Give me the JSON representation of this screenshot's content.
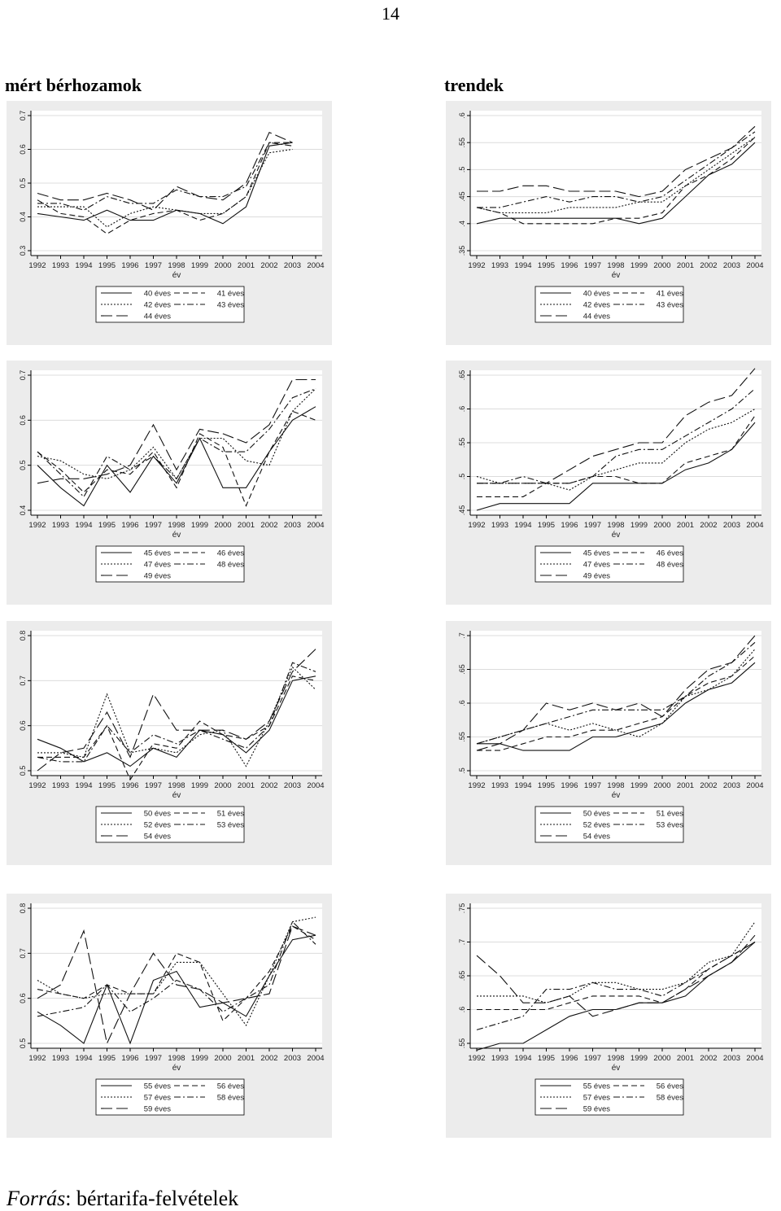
{
  "page_number": "14",
  "titles": {
    "left": "mért bérhozamok",
    "right": "trendek"
  },
  "footer": {
    "label": "Forrás",
    "text": ": bértarifa-felvételek"
  },
  "chart_data": [
    {
      "type": "line",
      "x_label": "év",
      "x": [
        1992,
        1993,
        1994,
        1995,
        1996,
        1997,
        1998,
        1999,
        2000,
        2001,
        2002,
        2003,
        2004
      ],
      "xticks": [
        "1992",
        "1993",
        "1994",
        "1995",
        "1996",
        "1997",
        "1998",
        "1999",
        "2000",
        "2001",
        "2002",
        "2003",
        "2004"
      ],
      "ylim": [
        0.3,
        0.7
      ],
      "yticks": [
        "0.3",
        "0.4",
        "0.5",
        "0.6",
        "0.7"
      ],
      "ytick_values": [
        0.3,
        0.4,
        0.5,
        0.6,
        0.7
      ],
      "series": [
        {
          "name": "40 éves",
          "values": [
            0.41,
            0.4,
            0.39,
            0.42,
            0.39,
            0.39,
            0.42,
            0.41,
            0.38,
            0.43,
            0.61,
            0.62,
            null
          ]
        },
        {
          "name": "41 éves",
          "values": [
            0.45,
            0.41,
            0.4,
            0.35,
            0.39,
            0.41,
            0.42,
            0.39,
            0.41,
            0.46,
            0.62,
            0.62,
            null
          ]
        },
        {
          "name": "42 éves",
          "values": [
            0.43,
            0.43,
            0.43,
            0.37,
            0.41,
            0.43,
            0.42,
            0.41,
            0.41,
            0.46,
            0.59,
            0.6,
            null
          ]
        },
        {
          "name": "43 éves",
          "values": [
            0.44,
            0.44,
            0.42,
            0.46,
            0.44,
            0.44,
            0.48,
            0.46,
            0.46,
            0.49,
            0.62,
            0.61,
            null
          ]
        },
        {
          "name": "44 éves",
          "values": [
            0.47,
            0.45,
            0.45,
            0.47,
            0.45,
            0.42,
            0.49,
            0.46,
            0.45,
            0.5,
            0.65,
            0.62,
            null
          ]
        }
      ]
    },
    {
      "type": "line",
      "x_label": "év",
      "x": [
        1992,
        1993,
        1994,
        1995,
        1996,
        1997,
        1998,
        1999,
        2000,
        2001,
        2002,
        2003,
        2004
      ],
      "xticks": [
        "1992",
        "1993",
        "1994",
        "1995",
        "1996",
        "1997",
        "1998",
        "1999",
        "2000",
        "2001",
        "2002",
        "2003",
        "2004"
      ],
      "ylim": [
        0.35,
        0.6
      ],
      "yticks": [
        ".35",
        ".4",
        ".45",
        ".5",
        ".55",
        ".6"
      ],
      "ytick_values": [
        0.35,
        0.4,
        0.45,
        0.5,
        0.55,
        0.6
      ],
      "series": [
        {
          "name": "40 éves",
          "values": [
            0.4,
            0.41,
            0.41,
            0.41,
            0.41,
            0.41,
            0.41,
            0.4,
            0.41,
            0.45,
            0.49,
            0.51,
            0.55
          ]
        },
        {
          "name": "41 éves",
          "values": [
            0.43,
            0.42,
            0.4,
            0.4,
            0.4,
            0.4,
            0.41,
            0.41,
            0.42,
            0.47,
            0.49,
            0.52,
            0.56
          ]
        },
        {
          "name": "42 éves",
          "values": [
            0.43,
            0.42,
            0.42,
            0.42,
            0.43,
            0.43,
            0.43,
            0.44,
            0.44,
            0.47,
            0.5,
            0.53,
            0.56
          ]
        },
        {
          "name": "43 éves",
          "values": [
            0.43,
            0.43,
            0.44,
            0.45,
            0.44,
            0.45,
            0.45,
            0.44,
            0.45,
            0.48,
            0.51,
            0.54,
            0.57
          ]
        },
        {
          "name": "44 éves",
          "values": [
            0.46,
            0.46,
            0.47,
            0.47,
            0.46,
            0.46,
            0.46,
            0.45,
            0.46,
            0.5,
            0.52,
            0.54,
            0.58
          ]
        }
      ]
    },
    {
      "type": "line",
      "x_label": "év",
      "x": [
        1992,
        1993,
        1994,
        1995,
        1996,
        1997,
        1998,
        1999,
        2000,
        2001,
        2002,
        2003,
        2004
      ],
      "xticks": [
        "1992",
        "1993",
        "1994",
        "1995",
        "1996",
        "1997",
        "1998",
        "1999",
        "2000",
        "2001",
        "2002",
        "2003",
        "2004"
      ],
      "ylim": [
        0.4,
        0.7
      ],
      "yticks": [
        "0.4",
        "0.5",
        "0.6",
        "0.7"
      ],
      "ytick_values": [
        0.4,
        0.5,
        0.6,
        0.7
      ],
      "series": [
        {
          "name": "45 éves",
          "values": [
            0.5,
            0.45,
            0.41,
            0.5,
            0.44,
            0.52,
            0.46,
            0.56,
            0.45,
            0.45,
            0.53,
            0.6,
            0.63
          ]
        },
        {
          "name": "46 éves",
          "values": [
            0.53,
            0.49,
            0.44,
            0.49,
            0.48,
            0.53,
            0.45,
            0.57,
            0.54,
            0.41,
            0.53,
            0.62,
            0.6
          ]
        },
        {
          "name": "47 éves",
          "values": [
            0.52,
            0.51,
            0.48,
            0.47,
            0.49,
            0.54,
            0.47,
            0.56,
            0.56,
            0.51,
            0.5,
            0.62,
            0.67
          ]
        },
        {
          "name": "48 éves",
          "values": [
            0.53,
            0.48,
            0.43,
            0.52,
            0.49,
            0.52,
            0.47,
            0.56,
            0.53,
            0.53,
            0.58,
            0.65,
            0.67
          ]
        },
        {
          "name": "49 éves",
          "values": [
            0.46,
            0.47,
            0.47,
            0.48,
            0.5,
            0.59,
            0.49,
            0.58,
            0.57,
            0.55,
            0.59,
            0.69,
            0.69
          ]
        }
      ]
    },
    {
      "type": "line",
      "x_label": "év",
      "x": [
        1992,
        1993,
        1994,
        1995,
        1996,
        1997,
        1998,
        1999,
        2000,
        2001,
        2002,
        2003,
        2004
      ],
      "xticks": [
        "1992",
        "1993",
        "1994",
        "1995",
        "1996",
        "1997",
        "1998",
        "1999",
        "2000",
        "2001",
        "2002",
        "2003",
        "2004"
      ],
      "ylim": [
        0.45,
        0.65
      ],
      "yticks": [
        ".45",
        ".5",
        ".55",
        ".6",
        ".65"
      ],
      "ytick_values": [
        0.45,
        0.5,
        0.55,
        0.6,
        0.65
      ],
      "series": [
        {
          "name": "45 éves",
          "values": [
            0.45,
            0.46,
            0.46,
            0.46,
            0.46,
            0.49,
            0.49,
            0.49,
            0.49,
            0.51,
            0.52,
            0.54,
            0.58
          ]
        },
        {
          "name": "46 éves",
          "values": [
            0.47,
            0.47,
            0.47,
            0.49,
            0.49,
            0.5,
            0.5,
            0.49,
            0.49,
            0.52,
            0.53,
            0.54,
            0.59
          ]
        },
        {
          "name": "47 éves",
          "values": [
            0.5,
            0.49,
            0.49,
            0.49,
            0.48,
            0.5,
            0.51,
            0.52,
            0.52,
            0.55,
            0.57,
            0.58,
            0.6
          ]
        },
        {
          "name": "48 éves",
          "values": [
            0.49,
            0.49,
            0.5,
            0.49,
            0.49,
            0.5,
            0.53,
            0.54,
            0.54,
            0.56,
            0.58,
            0.6,
            0.63
          ]
        },
        {
          "name": "49 éves",
          "values": [
            0.49,
            0.49,
            0.49,
            0.49,
            0.51,
            0.53,
            0.54,
            0.55,
            0.55,
            0.59,
            0.61,
            0.62,
            0.66
          ]
        }
      ]
    },
    {
      "type": "line",
      "x_label": "év",
      "x": [
        1992,
        1993,
        1994,
        1995,
        1996,
        1997,
        1998,
        1999,
        2000,
        2001,
        2002,
        2003,
        2004
      ],
      "xticks": [
        "1992",
        "1993",
        "1994",
        "1995",
        "1996",
        "1997",
        "1998",
        "1999",
        "2000",
        "2001",
        "2002",
        "2003",
        "2004"
      ],
      "ylim": [
        0.5,
        0.8
      ],
      "yticks": [
        "0.5",
        "0.6",
        "0.7",
        "0.8"
      ],
      "ytick_values": [
        0.5,
        0.6,
        0.7,
        0.8
      ],
      "series": [
        {
          "name": "50 éves",
          "values": [
            0.57,
            0.55,
            0.52,
            0.54,
            0.51,
            0.55,
            0.53,
            0.59,
            0.58,
            0.54,
            0.59,
            0.7,
            0.71
          ]
        },
        {
          "name": "51 éves",
          "values": [
            0.53,
            0.53,
            0.53,
            0.6,
            0.48,
            0.56,
            0.55,
            0.61,
            0.58,
            0.57,
            0.6,
            0.71,
            0.7
          ]
        },
        {
          "name": "52 éves",
          "values": [
            0.54,
            0.54,
            0.53,
            0.67,
            0.54,
            0.55,
            0.54,
            0.58,
            0.59,
            0.51,
            0.61,
            0.73,
            0.68
          ]
        },
        {
          "name": "53 éves",
          "values": [
            0.53,
            0.52,
            0.52,
            0.6,
            0.54,
            0.58,
            0.56,
            0.59,
            0.57,
            0.55,
            0.6,
            0.74,
            0.72
          ]
        },
        {
          "name": "54 éves",
          "values": [
            0.5,
            0.54,
            0.55,
            0.63,
            0.53,
            0.67,
            0.59,
            0.59,
            0.59,
            0.57,
            0.61,
            0.72,
            0.77
          ]
        }
      ]
    },
    {
      "type": "line",
      "x_label": "év",
      "x": [
        1992,
        1993,
        1994,
        1995,
        1996,
        1997,
        1998,
        1999,
        2000,
        2001,
        2002,
        2003,
        2004
      ],
      "xticks": [
        "1992",
        "1993",
        "1994",
        "1995",
        "1996",
        "1997",
        "1998",
        "1999",
        "2000",
        "2001",
        "2002",
        "2003",
        "2004"
      ],
      "ylim": [
        0.5,
        0.7
      ],
      "yticks": [
        ".5",
        ".55",
        ".6",
        ".65",
        ".7"
      ],
      "ytick_values": [
        0.5,
        0.55,
        0.6,
        0.65,
        0.7
      ],
      "series": [
        {
          "name": "50 éves",
          "values": [
            0.54,
            0.54,
            0.53,
            0.53,
            0.53,
            0.55,
            0.55,
            0.56,
            0.57,
            0.6,
            0.62,
            0.63,
            0.66
          ]
        },
        {
          "name": "51 éves",
          "values": [
            0.53,
            0.53,
            0.54,
            0.55,
            0.55,
            0.56,
            0.56,
            0.57,
            0.58,
            0.61,
            0.63,
            0.64,
            0.67
          ]
        },
        {
          "name": "52 éves",
          "values": [
            0.54,
            0.55,
            0.56,
            0.57,
            0.56,
            0.57,
            0.56,
            0.55,
            0.57,
            0.61,
            0.62,
            0.64,
            0.68
          ]
        },
        {
          "name": "53 éves",
          "values": [
            0.54,
            0.55,
            0.56,
            0.57,
            0.58,
            0.59,
            0.59,
            0.59,
            0.59,
            0.61,
            0.64,
            0.66,
            0.69
          ]
        },
        {
          "name": "54 éves",
          "values": [
            0.53,
            0.54,
            0.56,
            0.6,
            0.59,
            0.6,
            0.59,
            0.6,
            0.58,
            0.62,
            0.65,
            0.66,
            0.7
          ]
        }
      ]
    },
    {
      "type": "line",
      "x_label": "év",
      "x": [
        1992,
        1993,
        1994,
        1995,
        1996,
        1997,
        1998,
        1999,
        2000,
        2001,
        2002,
        2003,
        2004
      ],
      "xticks": [
        "1992",
        "1993",
        "1994",
        "1995",
        "1996",
        "1997",
        "1998",
        "1999",
        "2000",
        "2001",
        "2002",
        "2003",
        "2004"
      ],
      "ylim": [
        0.5,
        0.8
      ],
      "yticks": [
        "0.5",
        "0.6",
        "0.7",
        "0.8"
      ],
      "ytick_values": [
        0.5,
        0.6,
        0.7,
        0.8
      ],
      "series": [
        {
          "name": "55 éves",
          "values": [
            0.57,
            0.54,
            0.5,
            0.63,
            0.5,
            0.64,
            0.66,
            0.58,
            0.59,
            0.56,
            0.65,
            0.73,
            0.74
          ]
        },
        {
          "name": "56 éves",
          "values": [
            0.62,
            0.61,
            0.6,
            0.63,
            0.61,
            0.61,
            0.7,
            0.68,
            0.55,
            0.6,
            0.66,
            0.76,
            0.73
          ]
        },
        {
          "name": "57 éves",
          "values": [
            0.64,
            0.61,
            0.6,
            0.61,
            0.61,
            0.61,
            0.68,
            0.68,
            0.61,
            0.54,
            0.65,
            0.77,
            0.78
          ]
        },
        {
          "name": "58 éves",
          "values": [
            0.56,
            0.57,
            0.58,
            0.63,
            0.57,
            0.6,
            0.64,
            0.62,
            0.57,
            0.6,
            0.63,
            0.77,
            0.72
          ]
        },
        {
          "name": "59 éves",
          "values": [
            0.6,
            0.63,
            0.75,
            0.5,
            0.61,
            0.7,
            0.63,
            0.62,
            0.59,
            0.6,
            0.61,
            0.76,
            0.74
          ]
        }
      ]
    },
    {
      "type": "line",
      "x_label": "év",
      "x": [
        1992,
        1993,
        1994,
        1995,
        1996,
        1997,
        1998,
        1999,
        2000,
        2001,
        2002,
        2003,
        2004
      ],
      "xticks": [
        "1992",
        "1993",
        "1994",
        "1995",
        "1996",
        "1997",
        "1998",
        "1999",
        "2000",
        "2001",
        "2002",
        "2003",
        "2004"
      ],
      "ylim": [
        0.55,
        0.75
      ],
      "yticks": [
        ".55",
        ".6",
        ".65",
        ".7",
        ".75"
      ],
      "ytick_values": [
        0.55,
        0.6,
        0.65,
        0.7,
        0.75
      ],
      "series": [
        {
          "name": "55 éves",
          "values": [
            0.54,
            0.55,
            0.55,
            0.57,
            0.59,
            0.6,
            0.6,
            0.61,
            0.61,
            0.62,
            0.65,
            0.67,
            0.7
          ]
        },
        {
          "name": "56 éves",
          "values": [
            0.6,
            0.6,
            0.6,
            0.6,
            0.61,
            0.62,
            0.62,
            0.62,
            0.61,
            0.63,
            0.66,
            0.68,
            0.7
          ]
        },
        {
          "name": "57 éves",
          "values": [
            0.62,
            0.62,
            0.62,
            0.61,
            0.62,
            0.64,
            0.64,
            0.63,
            0.63,
            0.64,
            0.67,
            0.68,
            0.73
          ]
        },
        {
          "name": "58 éves",
          "values": [
            0.57,
            0.58,
            0.59,
            0.63,
            0.63,
            0.64,
            0.63,
            0.63,
            0.62,
            0.64,
            0.66,
            0.68,
            0.7
          ]
        },
        {
          "name": "59 éves",
          "values": [
            0.68,
            0.65,
            0.61,
            0.61,
            0.62,
            0.59,
            0.6,
            0.61,
            0.61,
            0.63,
            0.65,
            0.67,
            0.71
          ]
        }
      ]
    }
  ]
}
